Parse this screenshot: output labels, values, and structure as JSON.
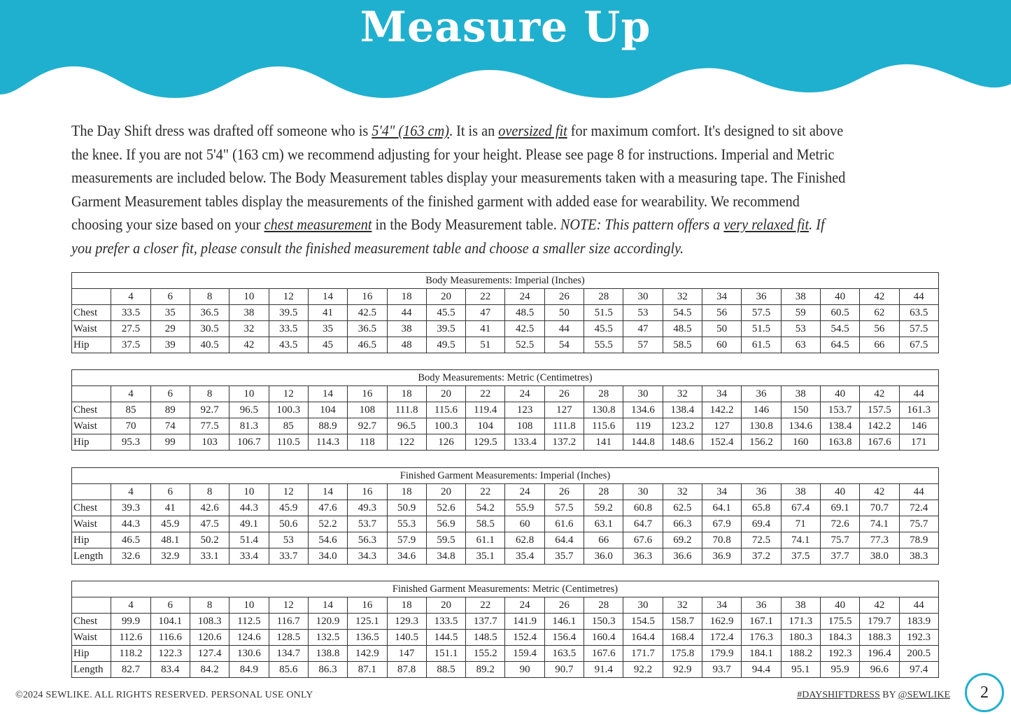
{
  "header": {
    "title": "Measure Up",
    "color": "#1fb0cf"
  },
  "intro": {
    "lines": [
      [
        {
          "t": "The Day Shift dress was drafted off someone who is ",
          "s": ""
        },
        {
          "t": "5'4\" (163 cm)",
          "s": "u"
        },
        {
          "t": ". It is an ",
          "s": ""
        },
        {
          "t": "oversized fit",
          "s": "u"
        },
        {
          "t": " for maximum comfort. It's designed to sit above",
          "s": ""
        }
      ],
      [
        {
          "t": "the knee. If you are not 5'4\" (163 cm) we recommend adjusting for your height. Please see page 8 for instructions. Imperial and Metric",
          "s": ""
        }
      ],
      [
        {
          "t": "measurements are included below. The Body Measurement tables display your measurements taken with a measuring tape. The Finished",
          "s": ""
        }
      ],
      [
        {
          "t": "Garment Measurement tables display the measurements of the finished garment with added ease for wearability. We recommend",
          "s": ""
        }
      ],
      [
        {
          "t": "choosing your size based on your ",
          "s": ""
        },
        {
          "t": "chest measurement",
          "s": "u"
        },
        {
          "t": " in the Body Measurement table. ",
          "s": ""
        },
        {
          "t": "NOTE: This pattern offers a ",
          "s": "i"
        },
        {
          "t": "very relaxed fit",
          "s": "u"
        },
        {
          "t": ". If",
          "s": "i"
        }
      ],
      [
        {
          "t": "you prefer a closer fit, please consult the finished measurement table and choose a smaller size accordingly.",
          "s": "i"
        }
      ]
    ]
  },
  "sizes": [
    "4",
    "6",
    "8",
    "10",
    "12",
    "14",
    "16",
    "18",
    "20",
    "22",
    "24",
    "26",
    "28",
    "30",
    "32",
    "34",
    "36",
    "38",
    "40",
    "42",
    "44"
  ],
  "tables": [
    {
      "title": "Body Measurements: Imperial (Inches)",
      "rows": [
        {
          "label": "Chest",
          "values": [
            "33.5",
            "35",
            "36.5",
            "38",
            "39.5",
            "41",
            "42.5",
            "44",
            "45.5",
            "47",
            "48.5",
            "50",
            "51.5",
            "53",
            "54.5",
            "56",
            "57.5",
            "59",
            "60.5",
            "62",
            "63.5"
          ]
        },
        {
          "label": "Waist",
          "values": [
            "27.5",
            "29",
            "30.5",
            "32",
            "33.5",
            "35",
            "36.5",
            "38",
            "39.5",
            "41",
            "42.5",
            "44",
            "45.5",
            "47",
            "48.5",
            "50",
            "51.5",
            "53",
            "54.5",
            "56",
            "57.5"
          ]
        },
        {
          "label": "Hip",
          "values": [
            "37.5",
            "39",
            "40.5",
            "42",
            "43.5",
            "45",
            "46.5",
            "48",
            "49.5",
            "51",
            "52.5",
            "54",
            "55.5",
            "57",
            "58.5",
            "60",
            "61.5",
            "63",
            "64.5",
            "66",
            "67.5"
          ]
        }
      ]
    },
    {
      "title": "Body Measurements: Metric (Centimetres)",
      "rows": [
        {
          "label": "Chest",
          "values": [
            "85",
            "89",
            "92.7",
            "96.5",
            "100.3",
            "104",
            "108",
            "111.8",
            "115.6",
            "119.4",
            "123",
            "127",
            "130.8",
            "134.6",
            "138.4",
            "142.2",
            "146",
            "150",
            "153.7",
            "157.5",
            "161.3"
          ]
        },
        {
          "label": "Waist",
          "values": [
            "70",
            "74",
            "77.5",
            "81.3",
            "85",
            "88.9",
            "92.7",
            "96.5",
            "100.3",
            "104",
            "108",
            "111.8",
            "115.6",
            "119",
            "123.2",
            "127",
            "130.8",
            "134.6",
            "138.4",
            "142.2",
            "146"
          ]
        },
        {
          "label": "Hip",
          "values": [
            "95.3",
            "99",
            "103",
            "106.7",
            "110.5",
            "114.3",
            "118",
            "122",
            "126",
            "129.5",
            "133.4",
            "137.2",
            "141",
            "144.8",
            "148.6",
            "152.4",
            "156.2",
            "160",
            "163.8",
            "167.6",
            "171"
          ]
        }
      ]
    },
    {
      "title": "Finished Garment Measurements: Imperial (Inches)",
      "rows": [
        {
          "label": "Chest",
          "values": [
            "39.3",
            "41",
            "42.6",
            "44.3",
            "45.9",
            "47.6",
            "49.3",
            "50.9",
            "52.6",
            "54.2",
            "55.9",
            "57.5",
            "59.2",
            "60.8",
            "62.5",
            "64.1",
            "65.8",
            "67.4",
            "69.1",
            "70.7",
            "72.4"
          ]
        },
        {
          "label": "Waist",
          "values": [
            "44.3",
            "45.9",
            "47.5",
            "49.1",
            "50.6",
            "52.2",
            "53.7",
            "55.3",
            "56.9",
            "58.5",
            "60",
            "61.6",
            "63.1",
            "64.7",
            "66.3",
            "67.9",
            "69.4",
            "71",
            "72.6",
            "74.1",
            "75.7"
          ]
        },
        {
          "label": "Hip",
          "values": [
            "46.5",
            "48.1",
            "50.2",
            "51.4",
            "53",
            "54.6",
            "56.3",
            "57.9",
            "59.5",
            "61.1",
            "62.8",
            "64.4",
            "66",
            "67.6",
            "69.2",
            "70.8",
            "72.5",
            "74.1",
            "75.7",
            "77.3",
            "78.9"
          ]
        },
        {
          "label": "Length",
          "values": [
            "32.6",
            "32.9",
            "33.1",
            "33.4",
            "33.7",
            "34.0",
            "34.3",
            "34.6",
            "34.8",
            "35.1",
            "35.4",
            "35.7",
            "36.0",
            "36.3",
            "36.6",
            "36.9",
            "37.2",
            "37.5",
            "37.7",
            "38.0",
            "38.3"
          ]
        }
      ]
    },
    {
      "title": "Finished Garment Measurements: Metric (Centimetres)",
      "rows": [
        {
          "label": "Chest",
          "values": [
            "99.9",
            "104.1",
            "108.3",
            "112.5",
            "116.7",
            "120.9",
            "125.1",
            "129.3",
            "133.5",
            "137.7",
            "141.9",
            "146.1",
            "150.3",
            "154.5",
            "158.7",
            "162.9",
            "167.1",
            "171.3",
            "175.5",
            "179.7",
            "183.9"
          ]
        },
        {
          "label": "Waist",
          "values": [
            "112.6",
            "116.6",
            "120.6",
            "124.6",
            "128.5",
            "132.5",
            "136.5",
            "140.5",
            "144.5",
            "148.5",
            "152.4",
            "156.4",
            "160.4",
            "164.4",
            "168.4",
            "172.4",
            "176.3",
            "180.3",
            "184.3",
            "188.3",
            "192.3"
          ]
        },
        {
          "label": "Hip",
          "values": [
            "118.2",
            "122.3",
            "127.4",
            "130.6",
            "134.7",
            "138.8",
            "142.9",
            "147",
            "151.1",
            "155.2",
            "159.4",
            "163.5",
            "167.6",
            "171.7",
            "175.8",
            "179.9",
            "184.1",
            "188.2",
            "192.3",
            "196.4",
            "200.5"
          ]
        },
        {
          "label": "Length",
          "values": [
            "82.7",
            "83.4",
            "84.2",
            "84.9",
            "85.6",
            "86.3",
            "87.1",
            "87.8",
            "88.5",
            "89.2",
            "90",
            "90.7",
            "91.4",
            "92.2",
            "92.9",
            "93.7",
            "94.4",
            "95.1",
            "95.9",
            "96.6",
            "97.4"
          ]
        }
      ]
    }
  ],
  "footer": {
    "copyright": "©2024 SEWLIKE. ALL RIGHTS RESERVED. PERSONAL USE ONLY",
    "hashtag": "#DAYSHIFTDRESS",
    "by": " BY ",
    "handle": "@SEWLIKE",
    "page_number": "2"
  }
}
